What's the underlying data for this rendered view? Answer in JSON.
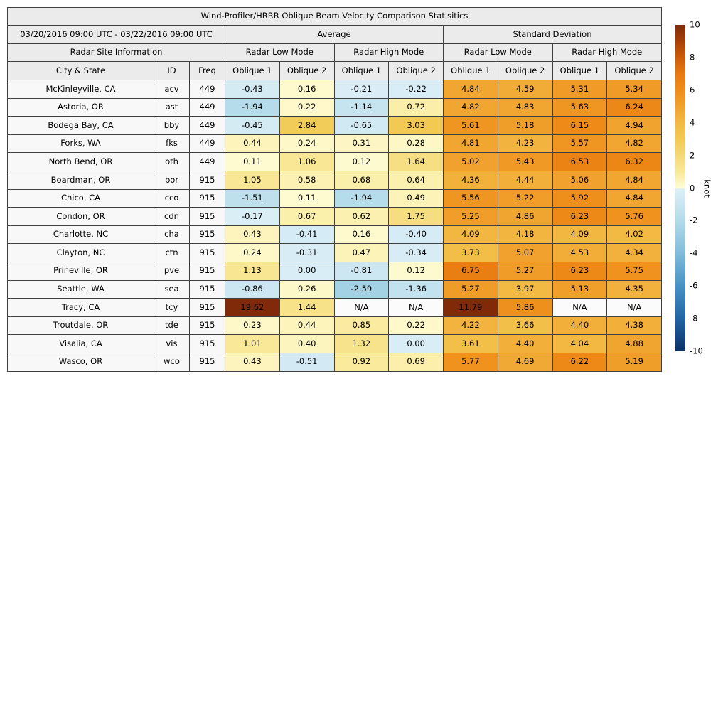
{
  "figure": {
    "title": "Wind-Profiler/HRRR Oblique Beam Velocity Comparison Statisitics",
    "date_range": "03/20/2016 09:00 UTC - 03/22/2016 09:00 UTC"
  },
  "headers": {
    "average": "Average",
    "standard_deviation": "Standard Deviation",
    "site_info": "Radar Site Information",
    "low_mode": "Radar Low Mode",
    "high_mode": "Radar High Mode",
    "city": "City & State",
    "id": "ID",
    "freq": "Freq",
    "oblique1": "Oblique 1",
    "oblique2": "Oblique 2"
  },
  "colorbar": {
    "label": "knot",
    "min": -10,
    "max": 10,
    "ticks": [
      "10",
      "8",
      "6",
      "4",
      "2",
      "0",
      "-2",
      "-4",
      "-6",
      "-8",
      "-10"
    ],
    "gradient_stops": [
      {
        "v": -10,
        "c": "#0a3168"
      },
      {
        "v": -8,
        "c": "#2264a6"
      },
      {
        "v": -6,
        "c": "#4593c5"
      },
      {
        "v": -4,
        "c": "#7fbcda"
      },
      {
        "v": -2,
        "c": "#b3dbea"
      },
      {
        "v": -0.05,
        "c": "#ddeff7"
      },
      {
        "v": 0,
        "c": "#fffdd8"
      },
      {
        "v": 1,
        "c": "#f9e897"
      },
      {
        "v": 2,
        "c": "#f5d977"
      },
      {
        "v": 3,
        "c": "#f2ca52"
      },
      {
        "v": 4,
        "c": "#f2b943"
      },
      {
        "v": 5,
        "c": "#f1a22e"
      },
      {
        "v": 6,
        "c": "#ee8d19"
      },
      {
        "v": 7,
        "c": "#e77a10"
      },
      {
        "v": 8,
        "c": "#cd5c07"
      },
      {
        "v": 9,
        "c": "#a64107"
      },
      {
        "v": 10,
        "c": "#812a0a"
      }
    ]
  },
  "colors": {
    "na_cell_bg": "#fbfbfb",
    "header_bg": "#ebebeb",
    "site_cell_bg": "#f8f8f8",
    "max_clip_color": "#812a0a",
    "min_clip_color": "#0a3168"
  },
  "chart_data": {
    "type": "heatmap",
    "title": "Wind-Profiler/HRRR Oblique Beam Velocity Comparison Statisitics",
    "date_range": "03/20/2016 09:00 UTC - 03/22/2016 09:00 UTC",
    "value_unit": "knot",
    "color_scale": {
      "min": -10,
      "max": 10
    },
    "column_groups": [
      "Average",
      "Standard Deviation"
    ],
    "mode_groups": [
      "Radar Low Mode",
      "Radar High Mode"
    ],
    "value_columns": [
      "avg_low_oblique1",
      "avg_low_oblique2",
      "avg_high_oblique1",
      "avg_high_oblique2",
      "std_low_oblique1",
      "std_low_oblique2",
      "std_high_oblique1",
      "std_high_oblique2"
    ],
    "rows": [
      {
        "city": "McKinleyville, CA",
        "id": "acv",
        "freq": "449",
        "values": [
          "-0.43",
          "0.16",
          "-0.21",
          "-0.22",
          "4.84",
          "4.59",
          "5.31",
          "5.34"
        ]
      },
      {
        "city": "Astoria, OR",
        "id": "ast",
        "freq": "449",
        "values": [
          "-1.94",
          "0.22",
          "-1.14",
          "0.72",
          "4.82",
          "4.83",
          "5.63",
          "6.24"
        ]
      },
      {
        "city": "Bodega Bay, CA",
        "id": "bby",
        "freq": "449",
        "values": [
          "-0.45",
          "2.84",
          "-0.65",
          "3.03",
          "5.61",
          "5.18",
          "6.15",
          "4.94"
        ]
      },
      {
        "city": "Forks, WA",
        "id": "fks",
        "freq": "449",
        "values": [
          "0.44",
          "0.24",
          "0.31",
          "0.28",
          "4.81",
          "4.23",
          "5.57",
          "4.82"
        ]
      },
      {
        "city": "North Bend, OR",
        "id": "oth",
        "freq": "449",
        "values": [
          "0.11",
          "1.06",
          "0.12",
          "1.64",
          "5.02",
          "5.43",
          "6.53",
          "6.32"
        ]
      },
      {
        "city": "Boardman, OR",
        "id": "bor",
        "freq": "915",
        "values": [
          "1.05",
          "0.58",
          "0.68",
          "0.64",
          "4.36",
          "4.44",
          "5.06",
          "4.84"
        ]
      },
      {
        "city": "Chico, CA",
        "id": "cco",
        "freq": "915",
        "values": [
          "-1.51",
          "0.11",
          "-1.94",
          "0.49",
          "5.56",
          "5.22",
          "5.92",
          "4.84"
        ]
      },
      {
        "city": "Condon, OR",
        "id": "cdn",
        "freq": "915",
        "values": [
          "-0.17",
          "0.67",
          "0.62",
          "1.75",
          "5.25",
          "4.86",
          "6.23",
          "5.76"
        ]
      },
      {
        "city": "Charlotte, NC",
        "id": "cha",
        "freq": "915",
        "values": [
          "0.43",
          "-0.41",
          "0.16",
          "-0.40",
          "4.09",
          "4.18",
          "4.09",
          "4.02"
        ]
      },
      {
        "city": "Clayton, NC",
        "id": "ctn",
        "freq": "915",
        "values": [
          "0.24",
          "-0.31",
          "0.47",
          "-0.34",
          "3.73",
          "5.07",
          "4.53",
          "4.34"
        ]
      },
      {
        "city": "Prineville, OR",
        "id": "pve",
        "freq": "915",
        "values": [
          "1.13",
          "0.00",
          "-0.81",
          "0.12",
          "6.75",
          "5.27",
          "6.23",
          "5.75"
        ]
      },
      {
        "city": "Seattle, WA",
        "id": "sea",
        "freq": "915",
        "values": [
          "-0.86",
          "0.26",
          "-2.59",
          "-1.36",
          "5.27",
          "3.97",
          "5.13",
          "4.35"
        ]
      },
      {
        "city": "Tracy, CA",
        "id": "tcy",
        "freq": "915",
        "values": [
          "19.62",
          "1.44",
          "N/A",
          "N/A",
          "11.79",
          "5.86",
          "N/A",
          "N/A"
        ]
      },
      {
        "city": "Troutdale, OR",
        "id": "tde",
        "freq": "915",
        "values": [
          "0.23",
          "0.44",
          "0.85",
          "0.22",
          "4.22",
          "3.66",
          "4.40",
          "4.38"
        ]
      },
      {
        "city": "Visalia, CA",
        "id": "vis",
        "freq": "915",
        "values": [
          "1.01",
          "0.40",
          "1.32",
          "0.00",
          "3.61",
          "4.40",
          "4.04",
          "4.88"
        ]
      },
      {
        "city": "Wasco, OR",
        "id": "wco",
        "freq": "915",
        "values": [
          "0.43",
          "-0.51",
          "0.92",
          "0.69",
          "5.77",
          "4.69",
          "6.22",
          "5.19"
        ]
      }
    ]
  }
}
